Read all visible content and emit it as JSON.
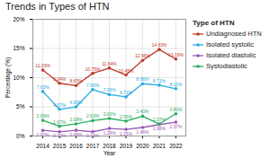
{
  "chart_data": {
    "type": "line",
    "title": "Trends in Types of HTN",
    "xlabel": "Year",
    "ylabel": "Percentage (%)",
    "legend_title": "Type of HTN",
    "x": [
      2014,
      2015,
      2016,
      2017,
      2018,
      2019,
      2020,
      2021,
      2022
    ],
    "xlim": [
      2013.4,
      2022.6
    ],
    "xticks": [
      2014,
      2015,
      2016,
      2017,
      2018,
      2019,
      2020,
      2021,
      2022
    ],
    "ylim": [
      0,
      20
    ],
    "yticks": [
      {
        "value": 0,
        "label": "0%"
      },
      {
        "value": 5,
        "label": "5%"
      },
      {
        "value": 10,
        "label": "10%"
      },
      {
        "value": 15,
        "label": "15%"
      },
      {
        "value": 20,
        "label": "20%"
      }
    ],
    "grid": true,
    "legend": "right",
    "data_labels": true,
    "series": [
      {
        "name": "Undiagnosed HTN",
        "color": "#c0392b",
        "marker": "circle",
        "values": [
          11.29,
          9.04,
          8.65,
          10.75,
          11.64,
          10.45,
          12.96,
          14.83,
          13.19
        ],
        "value_labels": [
          "11.29%",
          "9.04%",
          "8.65%",
          "10.75%",
          "11.64%",
          "10.45%",
          "12.96%",
          "14.83%",
          "13.19%"
        ]
      },
      {
        "name": "Isolated systolic",
        "color": "#29abe2",
        "marker": "circle",
        "values": [
          7.63,
          4.57,
          4.99,
          7.96,
          7.09,
          6.71,
          8.96,
          8.71,
          8.11
        ],
        "value_labels": [
          "7.63%",
          "4.57%",
          "4.99%",
          "7.96%",
          "7.09%",
          "6.71%",
          "8.96%",
          "8.71%",
          "8.11%"
        ]
      },
      {
        "name": "Isolated diastolic",
        "color": "#9b59b6",
        "marker": "circle",
        "values": [
          0.97,
          0.72,
          0.98,
          0.73,
          1.29,
          1.15,
          1.46,
          1.96,
          2.37
        ],
        "value_labels": [
          "0.97%",
          "0.72%",
          "0.98%",
          "0.73%",
          "1.29%",
          "1.15%",
          "1.46%",
          "1.96%",
          "2.37%"
        ]
      },
      {
        "name": "Systodiastolic",
        "color": "#27ae60",
        "marker": "circle",
        "values": [
          2.69,
          1.67,
          2.08,
          2.63,
          3.0,
          2.55,
          3.4,
          2.07,
          3.8
        ],
        "value_labels": [
          "2.69%",
          "1.67%",
          "2.08%",
          "2.63%",
          "3.00%",
          "2.55%",
          "3.40%",
          "2.07%",
          "3.80%"
        ]
      }
    ]
  }
}
